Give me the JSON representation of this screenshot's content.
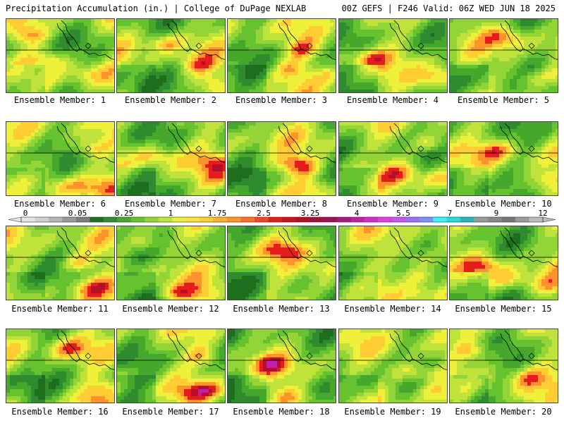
{
  "header": {
    "left": "Precipitation Accumulation (in.) | College of DuPage NEXLAB",
    "right": "00Z GEFS | F246 Valid: 06Z WED JUN 18 2025"
  },
  "colorbar": {
    "labels": [
      "0",
      "0.05",
      "0.25",
      "1",
      "1.75",
      "2.5",
      "3.25",
      "4",
      "5.5",
      "7",
      "9",
      "12"
    ],
    "colors": [
      "#e6e6e6",
      "#cfcfcf",
      "#b5b5b5",
      "#9a9a9a",
      "#7d7d7d",
      "#1e6e1e",
      "#2e8b2e",
      "#45a82d",
      "#66c22e",
      "#93d436",
      "#c0e33c",
      "#eef03a",
      "#fce23a",
      "#ffcd33",
      "#ffb22e",
      "#ff922b",
      "#ff6e26",
      "#f54522",
      "#e61b1b",
      "#cc1121",
      "#b40e2b",
      "#a3113d",
      "#9b1457",
      "#a4187a",
      "#c21fa8",
      "#d72ac8",
      "#e040dd",
      "#c855f0",
      "#9f6ef7",
      "#7e8ff9",
      "#39f2fa",
      "#26dcdc",
      "#2db3b3",
      "#999999",
      "#888888",
      "#777777",
      "#9c9c9c",
      "#bbbbbb"
    ]
  },
  "members": [
    {
      "label": "Ensemble Member: 1"
    },
    {
      "label": "Ensemble Member: 2"
    },
    {
      "label": "Ensemble Member: 3"
    },
    {
      "label": "Ensemble Member: 4"
    },
    {
      "label": "Ensemble Member: 5"
    },
    {
      "label": "Ensemble Member: 6"
    },
    {
      "label": "Ensemble Member: 7"
    },
    {
      "label": "Ensemble Member: 8"
    },
    {
      "label": "Ensemble Member: 9"
    },
    {
      "label": "Ensemble Member: 10"
    },
    {
      "label": "Ensemble Member: 11"
    },
    {
      "label": "Ensemble Member: 12"
    },
    {
      "label": "Ensemble Member: 13"
    },
    {
      "label": "Ensemble Member: 14"
    },
    {
      "label": "Ensemble Member: 15"
    },
    {
      "label": "Ensemble Member: 16"
    },
    {
      "label": "Ensemble Member: 17"
    },
    {
      "label": "Ensemble Member: 18"
    },
    {
      "label": "Ensemble Member: 19"
    },
    {
      "label": "Ensemble Member: 20"
    }
  ]
}
